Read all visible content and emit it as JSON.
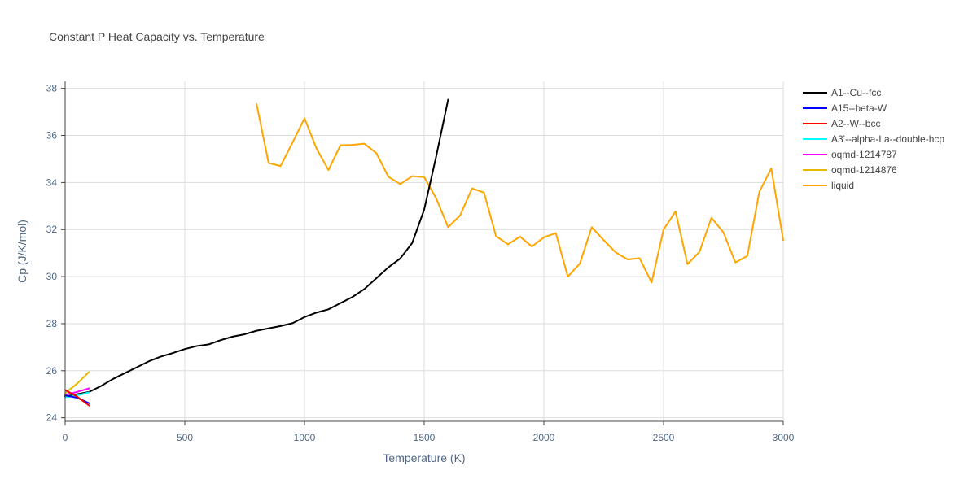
{
  "chart_data": {
    "type": "line",
    "title": "Constant P Heat Capacity vs. Temperature",
    "xlabel": "Temperature (K)",
    "ylabel": "Cp (J/K/mol)",
    "xlim": [
      0,
      3000
    ],
    "ylim": [
      23.85,
      38.3
    ],
    "x_ticks": [
      0,
      500,
      1000,
      1500,
      2000,
      2500,
      3000
    ],
    "x_tick_labels": [
      "0",
      "500",
      "1000",
      "1500",
      "2000",
      "2500",
      "3000"
    ],
    "y_ticks": [
      24,
      26,
      28,
      30,
      32,
      34,
      36,
      38
    ],
    "y_tick_labels": [
      "24",
      "26",
      "28",
      "30",
      "32",
      "34",
      "36",
      "38"
    ],
    "grid": true,
    "legend_position": "right",
    "series": [
      {
        "name": "A1--Cu--fcc",
        "color": "#000000",
        "x": [
          0,
          100,
          150,
          200,
          250,
          300,
          350,
          400,
          450,
          500,
          550,
          600,
          650,
          700,
          750,
          800,
          850,
          900,
          950,
          1000,
          1050,
          1100,
          1150,
          1200,
          1250,
          1300,
          1350,
          1400,
          1450,
          1500,
          1550,
          1600
        ],
        "y": [
          24.9,
          25.1,
          25.35,
          25.65,
          25.9,
          26.15,
          26.4,
          26.6,
          26.75,
          26.92,
          27.05,
          27.12,
          27.3,
          27.45,
          27.55,
          27.7,
          27.8,
          27.9,
          28.02,
          28.28,
          28.47,
          28.61,
          28.87,
          29.13,
          29.47,
          29.93,
          30.39,
          30.77,
          31.43,
          32.85,
          35.1,
          37.52
        ]
      },
      {
        "name": "A15--beta-W",
        "color": "#0000ff",
        "x": [
          0,
          50,
          100
        ],
        "y": [
          24.95,
          24.85,
          24.62
        ]
      },
      {
        "name": "A2--W--bcc",
        "color": "#ff0000",
        "x": [
          0,
          50,
          100
        ],
        "y": [
          25.18,
          24.9,
          24.52
        ]
      },
      {
        "name": "A3'--alpha-La--double-hcp",
        "color": "#00ffff",
        "x": [
          0,
          50,
          100
        ],
        "y": [
          24.87,
          24.95,
          25.08
        ]
      },
      {
        "name": "oqmd-1214787",
        "color": "#ff00ff",
        "x": [
          0,
          50,
          100
        ],
        "y": [
          24.98,
          25.1,
          25.25
        ]
      },
      {
        "name": "oqmd-1214876",
        "color": "#e6b800",
        "x": [
          0,
          50,
          100
        ],
        "y": [
          25.05,
          25.45,
          25.95
        ]
      },
      {
        "name": "liquid",
        "color": "#ffa500",
        "x": [
          800,
          850,
          900,
          950,
          1000,
          1050,
          1100,
          1150,
          1200,
          1250,
          1300,
          1350,
          1400,
          1450,
          1500,
          1550,
          1600,
          1650,
          1700,
          1750,
          1800,
          1850,
          1900,
          1950,
          2000,
          2050,
          2100,
          2150,
          2200,
          2250,
          2300,
          2350,
          2400,
          2450,
          2500,
          2550,
          2600,
          2650,
          2700,
          2750,
          2800,
          2850,
          2900,
          2950,
          3000
        ],
        "y": [
          37.33,
          34.83,
          34.7,
          35.7,
          36.73,
          35.45,
          34.53,
          35.58,
          35.6,
          35.65,
          35.25,
          34.25,
          33.93,
          34.27,
          34.23,
          33.33,
          32.1,
          32.6,
          33.75,
          33.57,
          31.72,
          31.37,
          31.7,
          31.28,
          31.67,
          31.85,
          30.0,
          30.55,
          32.1,
          31.55,
          31.03,
          30.73,
          30.78,
          29.75,
          32.0,
          32.77,
          30.53,
          31.05,
          32.5,
          31.88,
          30.6,
          30.88,
          33.6,
          34.6,
          31.55
        ]
      }
    ]
  }
}
